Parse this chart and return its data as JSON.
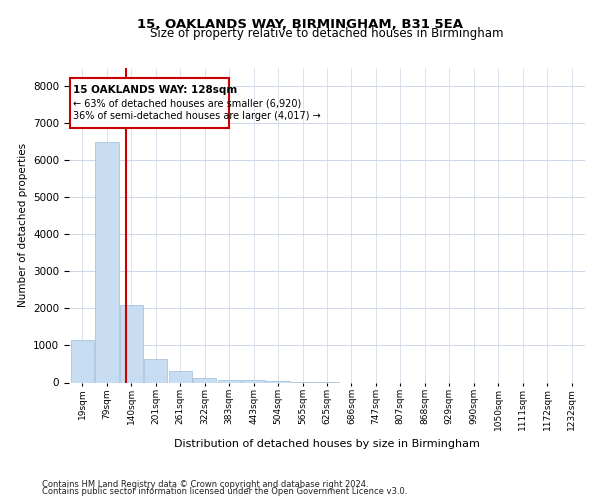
{
  "title": "15, OAKLANDS WAY, BIRMINGHAM, B31 5EA",
  "subtitle": "Size of property relative to detached houses in Birmingham",
  "xlabel": "Distribution of detached houses by size in Birmingham",
  "ylabel": "Number of detached properties",
  "categories": [
    "19sqm",
    "79sqm",
    "140sqm",
    "201sqm",
    "261sqm",
    "322sqm",
    "383sqm",
    "443sqm",
    "504sqm",
    "565sqm",
    "625sqm",
    "686sqm",
    "747sqm",
    "807sqm",
    "868sqm",
    "929sqm",
    "990sqm",
    "1050sqm",
    "1111sqm",
    "1172sqm",
    "1232sqm"
  ],
  "values": [
    1150,
    6480,
    2100,
    640,
    300,
    130,
    80,
    55,
    30,
    8,
    5,
    0,
    0,
    0,
    0,
    0,
    0,
    0,
    0,
    0,
    0
  ],
  "bar_color": "#c9ddf2",
  "bar_edge_color": "#9dbdd8",
  "grid_color": "#ccd6e8",
  "vline_color": "#cc0000",
  "annotation_box_color": "#cc0000",
  "property_label": "15 OAKLANDS WAY: 128sqm",
  "annotation_line1": "← 63% of detached houses are smaller (6,920)",
  "annotation_line2": "36% of semi-detached houses are larger (4,017) →",
  "footnote1": "Contains HM Land Registry data © Crown copyright and database right 2024.",
  "footnote2": "Contains public sector information licensed under the Open Government Licence v3.0.",
  "ylim": [
    0,
    8500
  ],
  "yticks": [
    0,
    1000,
    2000,
    3000,
    4000,
    5000,
    6000,
    7000,
    8000
  ],
  "vline_x": 1.8
}
